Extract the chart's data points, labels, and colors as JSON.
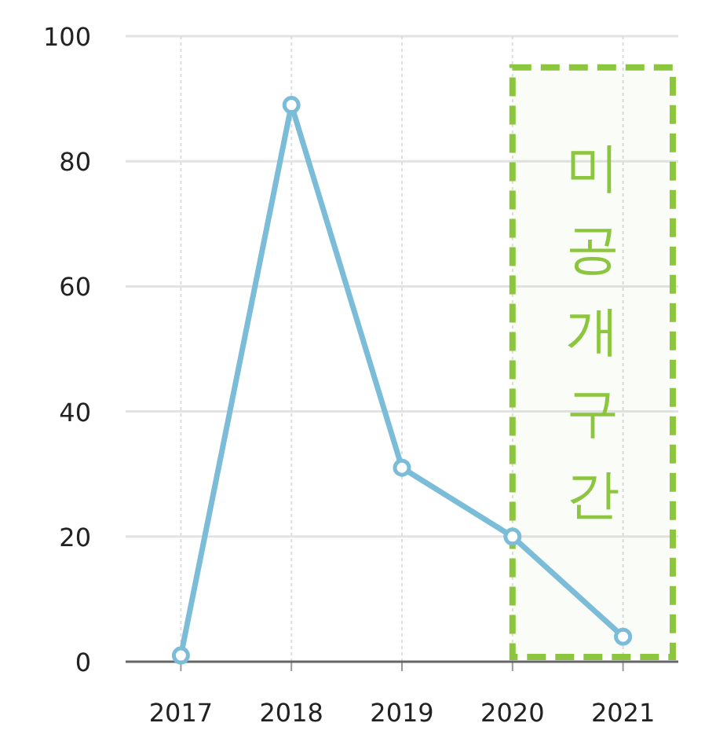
{
  "chart_data": {
    "type": "line",
    "categories": [
      "2017",
      "2018",
      "2019",
      "2020",
      "2021"
    ],
    "series": [
      {
        "color": "#7bbcd9",
        "values": [
          1,
          89,
          31,
          20,
          4
        ]
      }
    ],
    "ylim": [
      0,
      100
    ],
    "yticks": [
      0,
      20,
      40,
      60,
      80,
      100
    ],
    "grid": true,
    "marker": "circle",
    "line_style": "solid",
    "bands": [
      {
        "axis": "x",
        "from": "2020",
        "to": "2021",
        "label": "미공개구간",
        "color": "#8cc63f"
      }
    ]
  }
}
